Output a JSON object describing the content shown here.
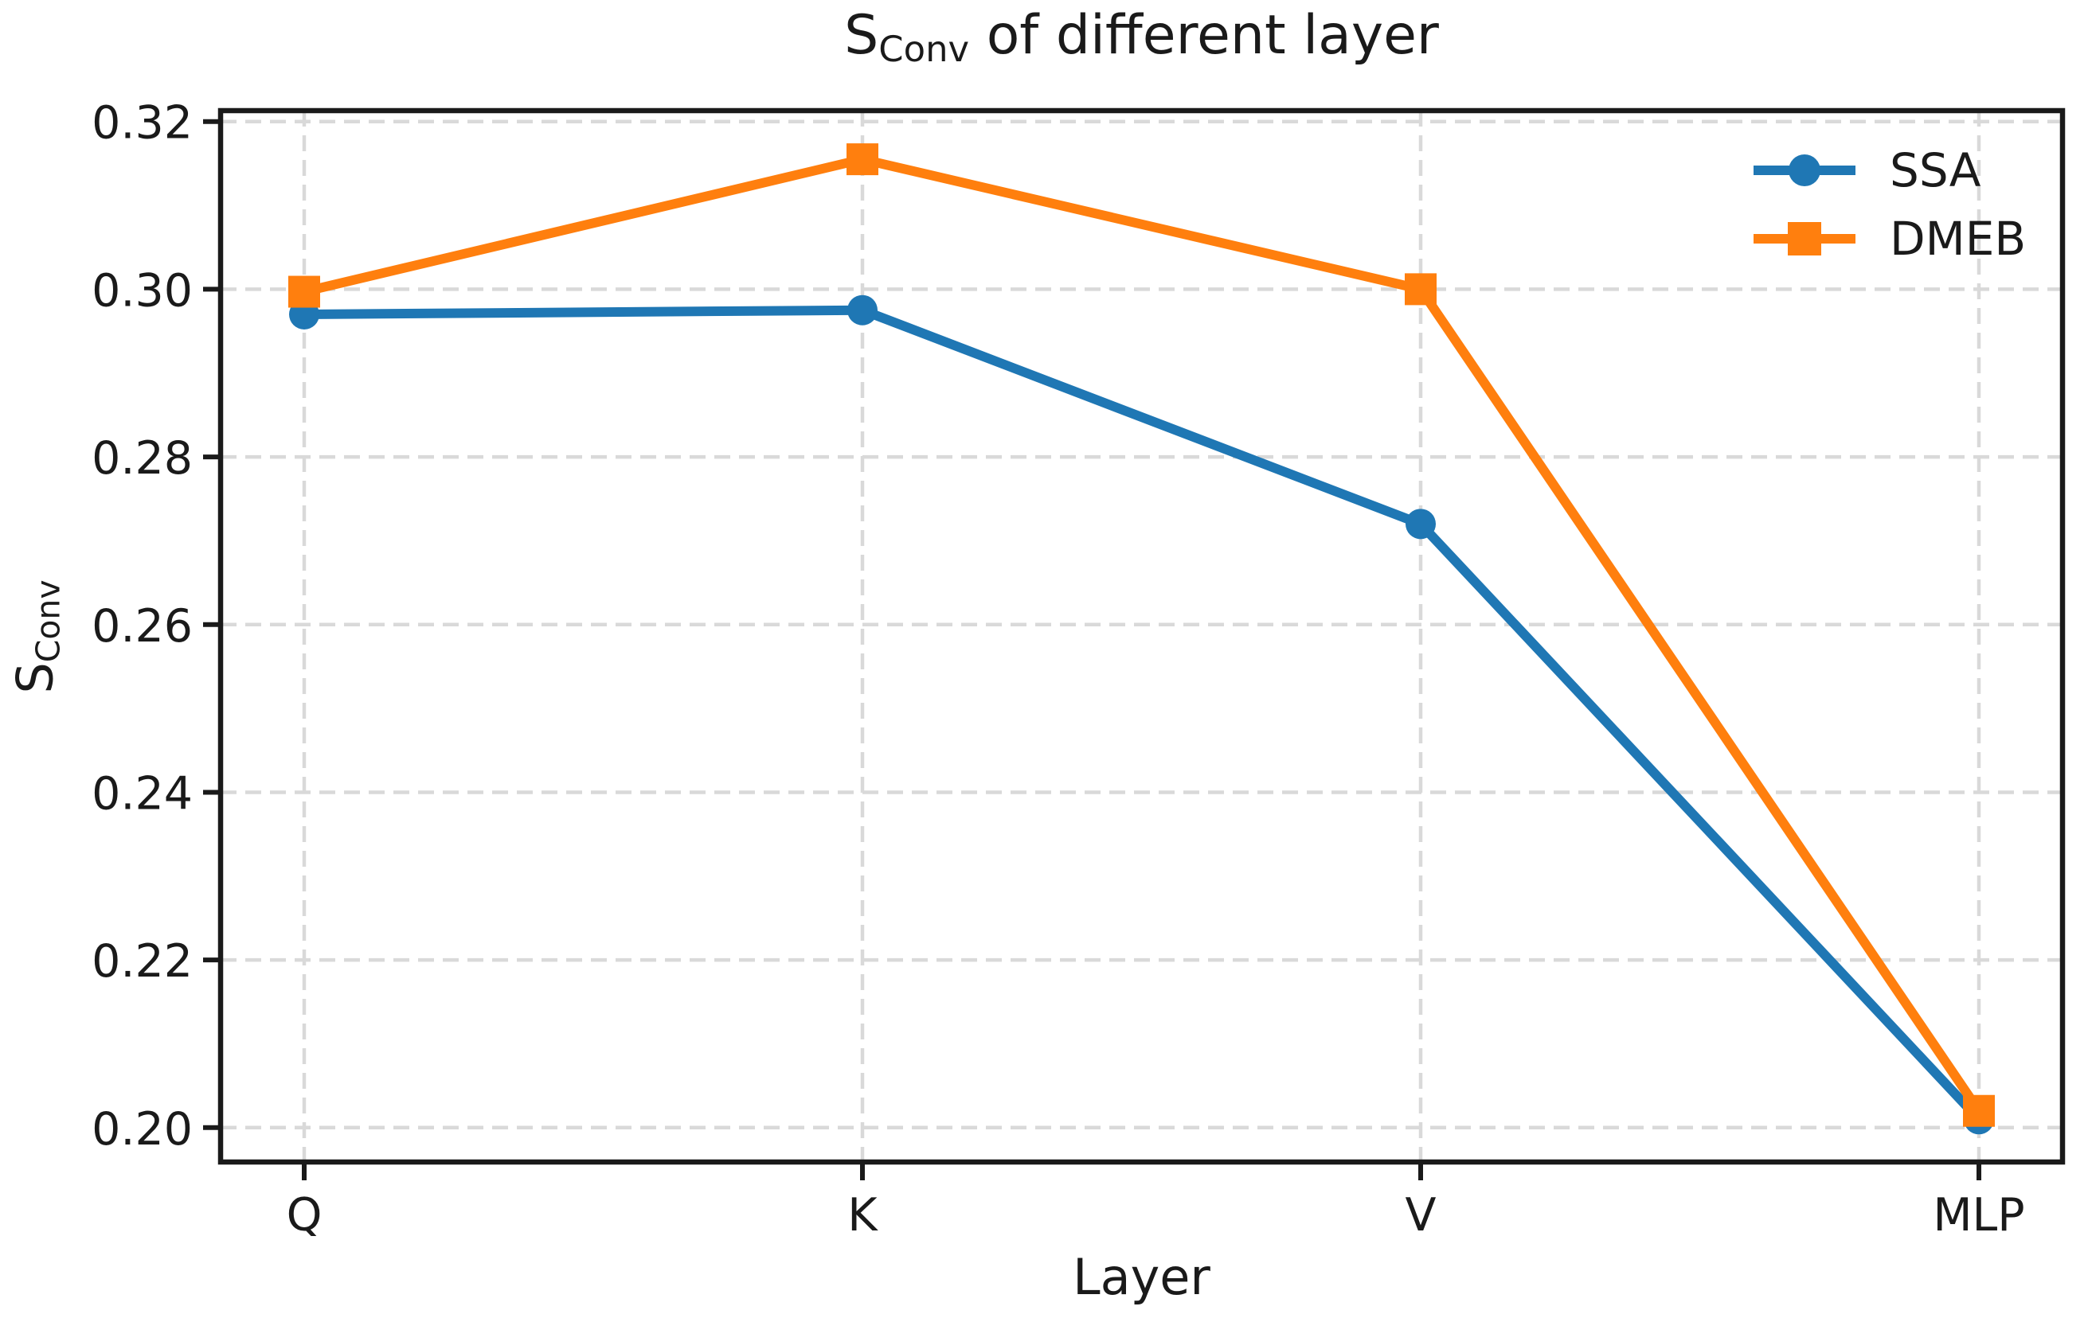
{
  "figure": {
    "title": {
      "prefix": "S",
      "subscript": "Conv",
      "suffix": " of different layer"
    },
    "xlabel": "Layer",
    "ylabel": {
      "prefix": "S",
      "subscript": "Conv"
    }
  },
  "chart_data": {
    "type": "line",
    "title": "S_Conv of different layer",
    "xlabel": "Layer",
    "ylabel": "S_Conv",
    "categories": [
      "Q",
      "K",
      "V",
      "MLP"
    ],
    "series": [
      {
        "name": "SSA",
        "color": "#1f77b4",
        "marker": "circle",
        "values": [
          0.297,
          0.2975,
          0.272,
          0.201
        ]
      },
      {
        "name": "DMEB",
        "color": "#ff7f0e",
        "marker": "square",
        "values": [
          0.2997,
          0.3155,
          0.3,
          0.202
        ]
      }
    ],
    "yticks": [
      0.2,
      0.22,
      0.24,
      0.26,
      0.28,
      0.3,
      0.32
    ],
    "ylim": [
      0.1959,
      0.3213
    ],
    "grid": true,
    "grid_style": "dashed",
    "legend_position": "upper right",
    "colors": {
      "grid": "#d9d9d9",
      "axis": "#1a1a1a",
      "background": "#ffffff"
    }
  }
}
